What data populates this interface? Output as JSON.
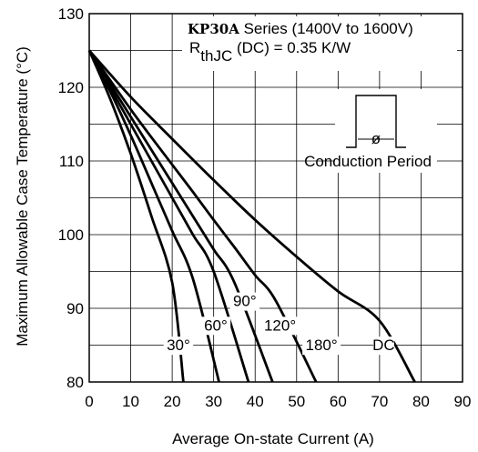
{
  "chart_data": {
    "type": "line",
    "title_parts": {
      "series_name": "KP30A",
      "series_rest": " Series (1400V to 1600V)",
      "rth_symbol": "R",
      "rth_subscript": "thJC",
      "rth_rest": " (DC) = 0.35 K/W"
    },
    "inset_label": "Conduction Period",
    "inset_symbol": "ø",
    "xlabel": "Average On-state Current (A)",
    "ylabel": "Maximum Allowable Case Temperature (°C)",
    "xlim": [
      0,
      90
    ],
    "ylim": [
      80,
      130
    ],
    "x_ticks": [
      "0",
      "10",
      "20",
      "30",
      "40",
      "50",
      "60",
      "70",
      "80",
      "90"
    ],
    "y_ticks": [
      "80",
      "90",
      "100",
      "110",
      "120",
      "130"
    ],
    "grid": true,
    "series": [
      {
        "name": "30°",
        "label_x": 21.5,
        "label_y": 84.3,
        "points": [
          [
            0,
            125
          ],
          [
            5,
            118.5
          ],
          [
            10,
            111
          ],
          [
            15,
            102.5
          ],
          [
            20,
            93.5
          ],
          [
            22.7,
            80
          ]
        ]
      },
      {
        "name": "60°",
        "label_x": 30.5,
        "label_y": 87,
        "points": [
          [
            0,
            125
          ],
          [
            5,
            119.5
          ],
          [
            10,
            113.5
          ],
          [
            15,
            107
          ],
          [
            20,
            100.5
          ],
          [
            25,
            94
          ],
          [
            31.3,
            80
          ]
        ]
      },
      {
        "name": "90°",
        "label_x": 37.5,
        "label_y": 90.3,
        "points": [
          [
            0,
            125
          ],
          [
            5,
            120
          ],
          [
            10,
            115
          ],
          [
            15,
            110
          ],
          [
            20,
            105
          ],
          [
            25,
            100
          ],
          [
            30,
            95
          ],
          [
            38.4,
            80
          ]
        ]
      },
      {
        "name": "120°",
        "label_x": 46,
        "label_y": 87,
        "points": [
          [
            0,
            125
          ],
          [
            5,
            120.5
          ],
          [
            10,
            116
          ],
          [
            15,
            111.5
          ],
          [
            20,
            107
          ],
          [
            25,
            102.5
          ],
          [
            30,
            98
          ],
          [
            35,
            93.5
          ],
          [
            44.2,
            80
          ]
        ]
      },
      {
        "name": "180°",
        "label_x": 56,
        "label_y": 84.3,
        "points": [
          [
            0,
            125
          ],
          [
            5,
            121
          ],
          [
            10,
            117
          ],
          [
            15,
            113.2
          ],
          [
            20,
            109.5
          ],
          [
            25,
            105.8
          ],
          [
            30,
            102
          ],
          [
            35,
            98.3
          ],
          [
            40,
            94.5
          ],
          [
            45,
            91
          ],
          [
            54.7,
            80
          ]
        ]
      },
      {
        "name": "DC",
        "label_x": 71,
        "label_y": 84.3,
        "points": [
          [
            0,
            125
          ],
          [
            10,
            118.7
          ],
          [
            20,
            113
          ],
          [
            30,
            107.4
          ],
          [
            40,
            102
          ],
          [
            50,
            97
          ],
          [
            60,
            92.3
          ],
          [
            70,
            88.3
          ],
          [
            78.5,
            80
          ]
        ]
      }
    ]
  }
}
